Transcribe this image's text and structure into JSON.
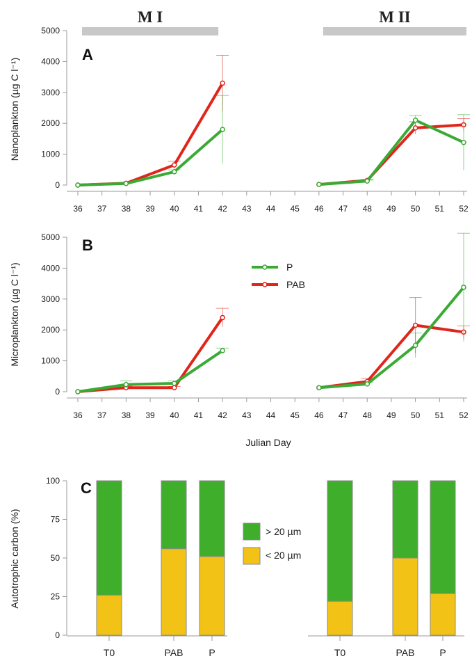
{
  "colors": {
    "P": "#3aaa35",
    "PAB": "#e0251b",
    "gt20": "#3fae2a",
    "lt20": "#f2c316",
    "bar_edge": "#8a8a8a",
    "period_bar": "#c8c8c8"
  },
  "periods": [
    {
      "label": "M I",
      "x_start": 36,
      "x_end": 42
    },
    {
      "label": "M II",
      "x_start": 46,
      "x_end": 52
    }
  ],
  "xlabel": "Julian Day",
  "legend_lines": [
    {
      "name": "P",
      "color": "#3aaa35"
    },
    {
      "name": "PAB",
      "color": "#e0251b"
    }
  ],
  "legend_bars": [
    {
      "name": "> 20 µm",
      "color": "#3fae2a"
    },
    {
      "name": "< 20 µm",
      "color": "#f2c316"
    }
  ],
  "chart_data": [
    {
      "panel": "A",
      "type": "line",
      "ylabel": "Nanoplankton (µg C l⁻¹)",
      "xlim": [
        36,
        52
      ],
      "ylim": [
        0,
        5000
      ],
      "xticks": [
        "36",
        "37",
        "38",
        "39",
        "40",
        "41",
        "42",
        "43",
        "44",
        "45",
        "46",
        "47",
        "48",
        "49",
        "50",
        "51",
        "52"
      ],
      "yticks": [
        "0",
        "1000",
        "2000",
        "3000",
        "4000",
        "5000"
      ],
      "series": [
        {
          "name": "P",
          "segments": [
            {
              "x": [
                36,
                38,
                40,
                42
              ],
              "y": [
                0,
                50,
                430,
                1800
              ],
              "err": [
                0,
                20,
                60,
                1100
              ]
            },
            {
              "x": [
                46,
                48,
                50,
                52
              ],
              "y": [
                20,
                130,
                2100,
                1380
              ],
              "err": [
                0,
                30,
                150,
                900
              ]
            }
          ]
        },
        {
          "name": "PAB",
          "segments": [
            {
              "x": [
                36,
                38,
                40,
                42
              ],
              "y": [
                0,
                60,
                650,
                3300
              ],
              "err": [
                0,
                20,
                120,
                900
              ]
            },
            {
              "x": [
                46,
                48,
                50,
                52
              ],
              "y": [
                20,
                150,
                1850,
                1950
              ],
              "err": [
                0,
                30,
                200,
                200
              ]
            }
          ]
        }
      ]
    },
    {
      "panel": "B",
      "type": "line",
      "ylabel": "Microplankton (µg C l⁻¹)",
      "xlim": [
        36,
        52
      ],
      "ylim": [
        0,
        5000
      ],
      "xticks": [
        "36",
        "37",
        "38",
        "39",
        "40",
        "41",
        "42",
        "43",
        "44",
        "45",
        "46",
        "47",
        "48",
        "49",
        "50",
        "51",
        "52"
      ],
      "yticks": [
        "0",
        "1000",
        "2000",
        "3000",
        "4000",
        "5000"
      ],
      "series": [
        {
          "name": "P",
          "segments": [
            {
              "x": [
                36,
                38,
                40,
                42
              ],
              "y": [
                0,
                230,
                270,
                1330
              ],
              "err": [
                0,
                120,
                80,
                80
              ]
            },
            {
              "x": [
                46,
                48,
                50,
                52
              ],
              "y": [
                130,
                250,
                1500,
                3380
              ],
              "err": [
                0,
                60,
                400,
                1750
              ]
            }
          ]
        },
        {
          "name": "PAB",
          "segments": [
            {
              "x": [
                36,
                38,
                40,
                42
              ],
              "y": [
                0,
                130,
                130,
                2400
              ],
              "err": [
                0,
                50,
                40,
                300
              ]
            },
            {
              "x": [
                46,
                48,
                50,
                52
              ],
              "y": [
                130,
                330,
                2150,
                1930
              ],
              "err": [
                0,
                100,
                900,
                200
              ]
            }
          ]
        }
      ]
    },
    {
      "panel": "C",
      "type": "bar",
      "stacked": true,
      "ylabel": "Autotrophic carbon (%)",
      "ylim": [
        0,
        100
      ],
      "yticks": [
        "0",
        "25",
        "50",
        "75",
        "100"
      ],
      "groups": [
        {
          "categories": [
            "T0",
            "PAB",
            "P"
          ],
          "lt20": [
            26,
            56,
            51
          ],
          "gt20": [
            74,
            44,
            49
          ]
        },
        {
          "categories": [
            "T0",
            "PAB",
            "P"
          ],
          "lt20": [
            22,
            50,
            27
          ],
          "gt20": [
            78,
            50,
            73
          ]
        }
      ]
    }
  ]
}
